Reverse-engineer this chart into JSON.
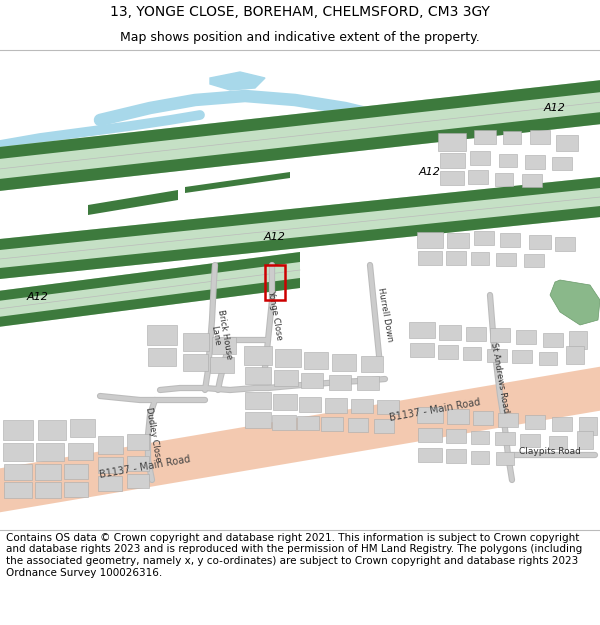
{
  "title_line1": "13, YONGE CLOSE, BOREHAM, CHELMSFORD, CM3 3GY",
  "title_line2": "Map shows position and indicative extent of the property.",
  "footer_text": "Contains OS data © Crown copyright and database right 2021. This information is subject to Crown copyright and database rights 2023 and is reproduced with the permission of HM Land Registry. The polygons (including the associated geometry, namely x, y co-ordinates) are subject to Crown copyright and database rights 2023 Ordnance Survey 100026316.",
  "road_a12_dark": "#3d7a3d",
  "road_a12_light": "#c5e0c5",
  "road_b1137_color": "#f2c4a8",
  "building_color": "#d0d0d0",
  "building_edge": "#aaaaaa",
  "water_color": "#a8d8ea",
  "green_color": "#8ab88a",
  "plot_color": "#cc0000",
  "title_fontsize": 10,
  "subtitle_fontsize": 9,
  "footer_fontsize": 7.5
}
